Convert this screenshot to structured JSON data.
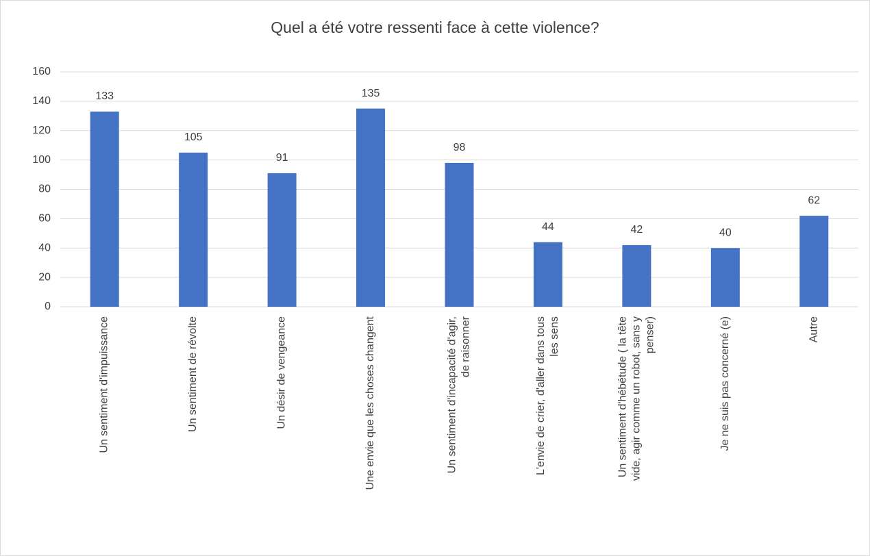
{
  "chart_data": {
    "type": "bar",
    "title": "Quel a été votre ressenti face à cette violence?",
    "categories": [
      "Un sentiment d'impuissance",
      "Un sentiment de révolte",
      "Un désir de vengeance",
      "Une envie que les choses changent",
      "Un sentiment d'incapacité d'agir, de raisonner",
      "L'envie de crier, d'aller dans tous les sens",
      "Un sentiment d'hébétude ( la tête vide, agir comme un robot, sans y penser)",
      "Je ne suis pas concerné (e)",
      "Autre"
    ],
    "values": [
      133,
      105,
      91,
      135,
      98,
      44,
      42,
      40,
      62
    ],
    "color": "#4472c4",
    "ylim": [
      0,
      160
    ],
    "yticks": [
      0,
      20,
      40,
      60,
      80,
      100,
      120,
      140,
      160
    ],
    "grid": true
  }
}
